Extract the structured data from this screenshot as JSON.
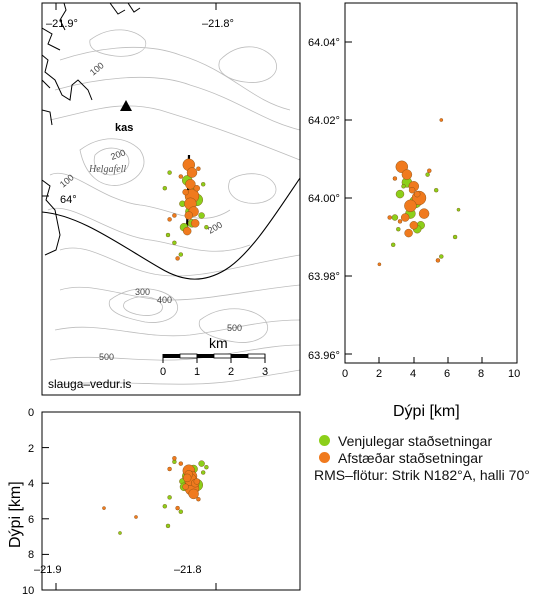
{
  "map": {
    "lon_left": "–21.9°",
    "lon_right": "–21.8°",
    "lat_label": "64°",
    "station": "kas",
    "place": "Helgafell",
    "scale_title": "km",
    "scale_ticks": [
      "0",
      "1",
      "2",
      "3"
    ],
    "contour_labels": [
      "100",
      "200",
      "100",
      "200",
      "300",
      "400",
      "500",
      "500"
    ],
    "credit": "slauga–vedur.is"
  },
  "side": {
    "lat_ticks": [
      "64.04°",
      "64.02°",
      "64.00°",
      "63.98°",
      "63.96°"
    ],
    "x_ticks": [
      "0",
      "2",
      "4",
      "6",
      "8",
      "10"
    ],
    "xlabel": "Dýpi [km]"
  },
  "bottom": {
    "y_ticks": [
      "0",
      "2",
      "4",
      "6",
      "8",
      "10"
    ],
    "ylabel": "Dýpi [km]",
    "x_ticks": [
      "–21.9",
      "–21.8"
    ]
  },
  "legend": {
    "green_label": "Venjulegar staðsetningar",
    "orange_label": "Afstæðar staðsetningar",
    "rms_label": "RMS–flötur: Strik N182°A, halli 70°",
    "green_color": "#8ccf1a",
    "orange_color": "#f07a1e"
  },
  "chart_data": {
    "type": "scatter",
    "series": [
      {
        "name": "Venjulegar staðsetningar",
        "points_lon_lat": [
          [
            -21.818,
            64.004
          ],
          [
            -21.814,
            64.001
          ],
          [
            -21.812,
            63.999
          ],
          [
            -21.816,
            63.996
          ],
          [
            -21.815,
            63.993
          ],
          [
            -21.809,
            63.995
          ],
          [
            -21.808,
            64.003
          ],
          [
            -21.829,
            64.006
          ],
          [
            -21.832,
            64.002
          ],
          [
            -21.821,
            63.998
          ],
          [
            -21.82,
            63.992
          ],
          [
            -21.806,
            63.992
          ],
          [
            -21.826,
            63.988
          ],
          [
            -21.822,
            63.985
          ],
          [
            -21.83,
            63.99
          ]
        ]
      },
      {
        "name": "Afstæðar staðsetningar",
        "points_lon_lat": [
          [
            -21.817,
            64.008
          ],
          [
            -21.815,
            64.006
          ],
          [
            -21.816,
            64.003
          ],
          [
            -21.815,
            64.0
          ],
          [
            -21.816,
            63.998
          ],
          [
            -21.814,
            63.996
          ],
          [
            -21.817,
            63.995
          ],
          [
            -21.813,
            63.993
          ],
          [
            -21.812,
            64.002
          ],
          [
            -21.819,
            64.001
          ],
          [
            -21.818,
            63.991
          ],
          [
            -21.822,
            64.005
          ],
          [
            -21.826,
            63.995
          ],
          [
            -21.824,
            63.984
          ],
          [
            -21.811,
            64.007
          ],
          [
            -21.829,
            63.994
          ]
        ]
      }
    ],
    "rms_plane": {
      "strike_deg": 182,
      "dip_deg": 70
    }
  }
}
